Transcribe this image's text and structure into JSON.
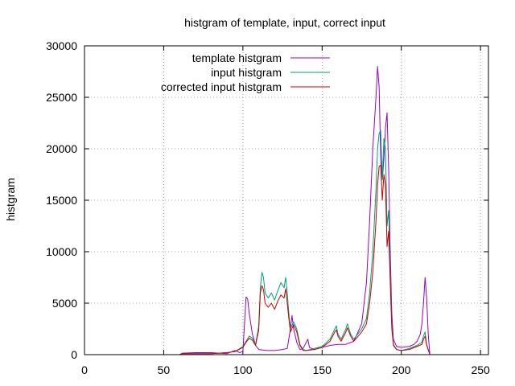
{
  "chart_data": {
    "type": "line",
    "title": "histgram of template, input, correct input",
    "xlabel": "",
    "ylabel": "histgram",
    "xlim": [
      0,
      255
    ],
    "ylim": [
      0,
      30000
    ],
    "x_ticks": [
      0,
      50,
      100,
      150,
      200,
      250
    ],
    "y_ticks": [
      0,
      5000,
      10000,
      15000,
      20000,
      25000,
      30000
    ],
    "grid": true,
    "legend_position": "top-left",
    "series": [
      {
        "name": "template histgram",
        "color": "#9400d3",
        "points": [
          [
            60,
            0
          ],
          [
            62,
            150
          ],
          [
            70,
            200
          ],
          [
            80,
            200
          ],
          [
            90,
            100
          ],
          [
            95,
            400
          ],
          [
            98,
            200
          ],
          [
            100,
            300
          ],
          [
            101,
            3000
          ],
          [
            102,
            5600
          ],
          [
            103,
            5400
          ],
          [
            104,
            4000
          ],
          [
            106,
            2000
          ],
          [
            108,
            900
          ],
          [
            110,
            500
          ],
          [
            115,
            400
          ],
          [
            120,
            400
          ],
          [
            125,
            500
          ],
          [
            128,
            600
          ],
          [
            130,
            2500
          ],
          [
            131,
            3800
          ],
          [
            132,
            2500
          ],
          [
            134,
            1200
          ],
          [
            136,
            500
          ],
          [
            138,
            600
          ],
          [
            141,
            1500
          ],
          [
            142,
            700
          ],
          [
            145,
            500
          ],
          [
            150,
            700
          ],
          [
            155,
            900
          ],
          [
            160,
            1000
          ],
          [
            165,
            1000
          ],
          [
            170,
            1300
          ],
          [
            175,
            3000
          ],
          [
            178,
            7000
          ],
          [
            180,
            13000
          ],
          [
            182,
            20000
          ],
          [
            184,
            25000
          ],
          [
            185,
            28000
          ],
          [
            186,
            26000
          ],
          [
            187,
            19000
          ],
          [
            188,
            17000
          ],
          [
            189,
            19000
          ],
          [
            190,
            22000
          ],
          [
            191,
            23500
          ],
          [
            192,
            18000
          ],
          [
            193,
            10000
          ],
          [
            194,
            4000
          ],
          [
            195,
            1500
          ],
          [
            197,
            800
          ],
          [
            200,
            700
          ],
          [
            205,
            800
          ],
          [
            208,
            1000
          ],
          [
            210,
            1300
          ],
          [
            212,
            2000
          ],
          [
            213,
            3000
          ],
          [
            214,
            5000
          ],
          [
            215,
            7500
          ],
          [
            216,
            5500
          ],
          [
            217,
            2000
          ],
          [
            218,
            0
          ]
        ]
      },
      {
        "name": "input histgram",
        "color": "#009e73",
        "points": [
          [
            60,
            0
          ],
          [
            62,
            100
          ],
          [
            70,
            100
          ],
          [
            80,
            100
          ],
          [
            90,
            200
          ],
          [
            95,
            300
          ],
          [
            100,
            800
          ],
          [
            102,
            1300
          ],
          [
            104,
            1800
          ],
          [
            106,
            1600
          ],
          [
            108,
            1000
          ],
          [
            110,
            2800
          ],
          [
            111,
            6500
          ],
          [
            112,
            8000
          ],
          [
            113,
            7500
          ],
          [
            114,
            6000
          ],
          [
            116,
            5500
          ],
          [
            118,
            6000
          ],
          [
            120,
            5300
          ],
          [
            122,
            6200
          ],
          [
            124,
            7000
          ],
          [
            126,
            6500
          ],
          [
            127,
            7500
          ],
          [
            128,
            6000
          ],
          [
            129,
            4000
          ],
          [
            130,
            2500
          ],
          [
            132,
            3200
          ],
          [
            134,
            2500
          ],
          [
            136,
            1000
          ],
          [
            138,
            500
          ],
          [
            140,
            400
          ],
          [
            145,
            600
          ],
          [
            150,
            800
          ],
          [
            155,
            1500
          ],
          [
            158,
            2500
          ],
          [
            159,
            2800
          ],
          [
            160,
            2000
          ],
          [
            162,
            1500
          ],
          [
            165,
            2500
          ],
          [
            166,
            3000
          ],
          [
            168,
            2000
          ],
          [
            170,
            1500
          ],
          [
            175,
            2500
          ],
          [
            178,
            3500
          ],
          [
            180,
            6000
          ],
          [
            182,
            10000
          ],
          [
            184,
            16000
          ],
          [
            185,
            20000
          ],
          [
            186,
            21500
          ],
          [
            187,
            21800
          ],
          [
            188,
            17000
          ],
          [
            189,
            21000
          ],
          [
            190,
            20000
          ],
          [
            191,
            12500
          ],
          [
            192,
            14000
          ],
          [
            193,
            8000
          ],
          [
            194,
            3000
          ],
          [
            195,
            1000
          ],
          [
            197,
            500
          ],
          [
            200,
            400
          ],
          [
            205,
            600
          ],
          [
            210,
            900
          ],
          [
            213,
            1200
          ],
          [
            214,
            1800
          ],
          [
            215,
            2200
          ],
          [
            216,
            1000
          ],
          [
            218,
            0
          ]
        ]
      },
      {
        "name": "corrected input histgram",
        "color": "#cc0000",
        "points": [
          [
            60,
            0
          ],
          [
            62,
            100
          ],
          [
            70,
            100
          ],
          [
            80,
            100
          ],
          [
            90,
            200
          ],
          [
            95,
            300
          ],
          [
            100,
            700
          ],
          [
            102,
            1200
          ],
          [
            104,
            1600
          ],
          [
            106,
            1400
          ],
          [
            108,
            900
          ],
          [
            110,
            2400
          ],
          [
            111,
            6000
          ],
          [
            112,
            6700
          ],
          [
            113,
            6300
          ],
          [
            114,
            5000
          ],
          [
            116,
            4600
          ],
          [
            118,
            5000
          ],
          [
            120,
            4400
          ],
          [
            122,
            5200
          ],
          [
            124,
            5800
          ],
          [
            126,
            5500
          ],
          [
            127,
            6400
          ],
          [
            128,
            5000
          ],
          [
            129,
            3500
          ],
          [
            130,
            2200
          ],
          [
            132,
            2900
          ],
          [
            134,
            2200
          ],
          [
            136,
            900
          ],
          [
            138,
            400
          ],
          [
            140,
            400
          ],
          [
            145,
            500
          ],
          [
            150,
            700
          ],
          [
            155,
            1300
          ],
          [
            158,
            2200
          ],
          [
            159,
            2400
          ],
          [
            160,
            1800
          ],
          [
            162,
            1300
          ],
          [
            165,
            2200
          ],
          [
            166,
            2600
          ],
          [
            168,
            1800
          ],
          [
            170,
            1300
          ],
          [
            175,
            2200
          ],
          [
            178,
            3000
          ],
          [
            180,
            5000
          ],
          [
            182,
            8000
          ],
          [
            184,
            13000
          ],
          [
            185,
            16500
          ],
          [
            186,
            18300
          ],
          [
            187,
            18400
          ],
          [
            188,
            15000
          ],
          [
            189,
            17500
          ],
          [
            190,
            16500
          ],
          [
            191,
            10500
          ],
          [
            192,
            12000
          ],
          [
            193,
            7000
          ],
          [
            194,
            2500
          ],
          [
            195,
            900
          ],
          [
            197,
            500
          ],
          [
            200,
            400
          ],
          [
            205,
            500
          ],
          [
            210,
            800
          ],
          [
            213,
            1000
          ],
          [
            214,
            1500
          ],
          [
            215,
            1800
          ],
          [
            216,
            900
          ],
          [
            218,
            0
          ]
        ]
      }
    ]
  }
}
